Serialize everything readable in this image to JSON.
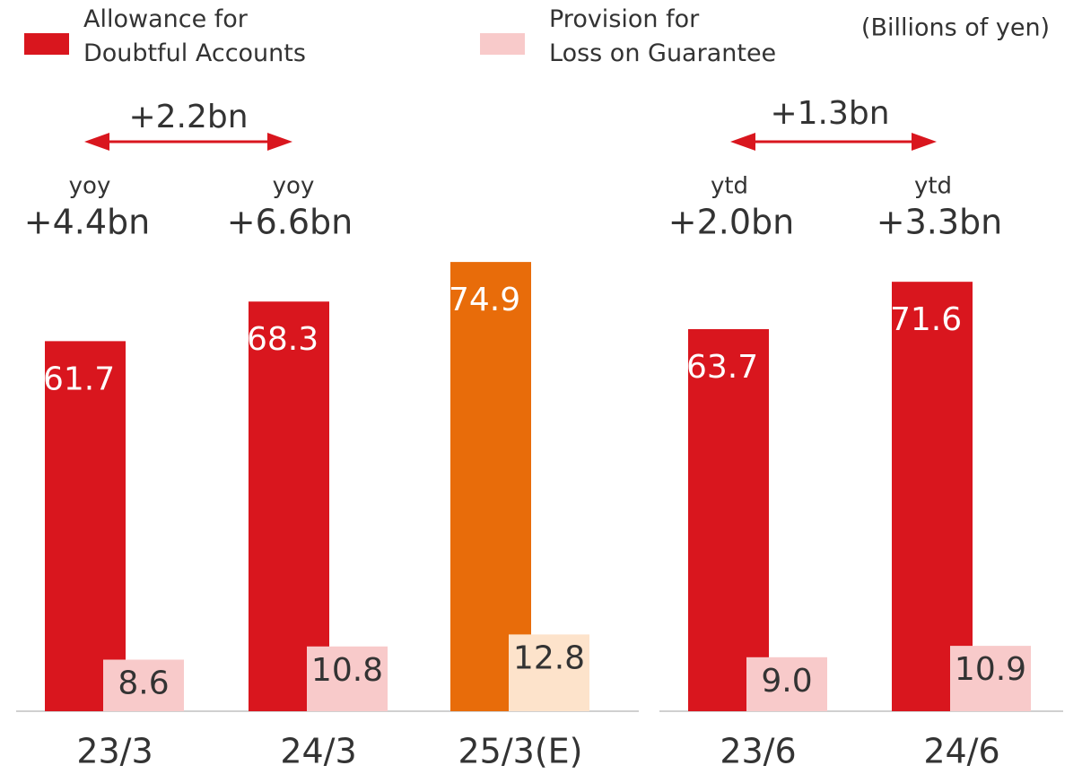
{
  "chart_data": {
    "type": "bar",
    "unit_label": "(Billions of yen)",
    "categories": [
      "23/3",
      "24/3",
      "25/3(E)",
      "23/6",
      "24/6"
    ],
    "series": [
      {
        "name": "Allowance for\nDoubtful Accounts",
        "color": "#d9161e",
        "point_colors": [
          "#d9161e",
          "#d9161e",
          "#e86c0a",
          "#d9161e",
          "#d9161e"
        ],
        "values": [
          61.7,
          68.3,
          74.9,
          63.7,
          71.6
        ]
      },
      {
        "name": "Provision for\nLoss on Guarantee",
        "color": "#f8caca",
        "point_colors": [
          "#f8caca",
          "#f8caca",
          "#fde3cb",
          "#f8caca",
          "#f8caca"
        ],
        "values": [
          8.6,
          10.8,
          12.8,
          9.0,
          10.9
        ],
        "value_labels": [
          "8.6",
          "10.8",
          "12.8",
          "9.0",
          "10.9"
        ]
      }
    ],
    "annotations": {
      "left_diff": "+2.2bn",
      "left_a_kind": "yoy",
      "left_a_value": "+4.4bn",
      "left_b_kind": "yoy",
      "left_b_value": "+6.6bn",
      "right_diff": "+1.3bn",
      "right_a_kind": "ytd",
      "right_a_value": "+2.0bn",
      "right_b_kind": "ytd",
      "right_b_value": "+3.3bn"
    },
    "ylim": [
      0,
      80
    ]
  }
}
